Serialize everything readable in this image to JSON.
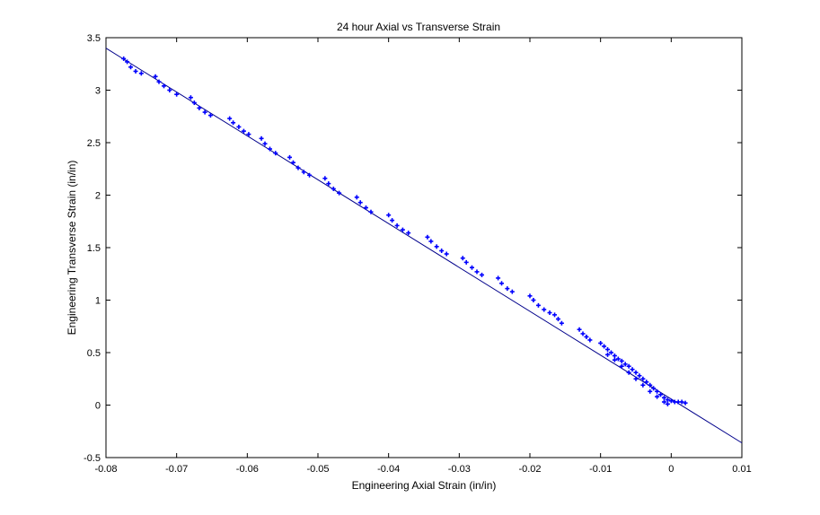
{
  "chart_data": {
    "type": "scatter",
    "title": "24 hour Axial vs Transverse Strain",
    "xlabel": "Engineering Axial Strain (in/in)",
    "ylabel": "Engineering Transverse Strain (in/in)",
    "xlim": [
      -0.08,
      0.01
    ],
    "ylim": [
      -0.5,
      3.5
    ],
    "xticks": [
      -0.08,
      -0.07,
      -0.06,
      -0.05,
      -0.04,
      -0.03,
      -0.02,
      -0.01,
      0,
      0.01
    ],
    "xtick_labels": [
      "-0.08",
      "-0.07",
      "-0.06",
      "-0.05",
      "-0.04",
      "-0.03",
      "-0.02",
      "-0.01",
      "0",
      "0.01"
    ],
    "yticks": [
      -0.5,
      0,
      0.5,
      1,
      1.5,
      2,
      2.5,
      3,
      3.5
    ],
    "ytick_labels": [
      "-0.5",
      "0",
      "0.5",
      "1",
      "1.5",
      "2",
      "2.5",
      "3",
      "3.5"
    ],
    "grid": false,
    "legend": "none",
    "colors": {
      "markers": "#0000ff",
      "fit_line": "#00008b",
      "axes": "#000000"
    },
    "series": [
      {
        "style": "markers",
        "points": [
          [
            -0.0775,
            3.3
          ],
          [
            -0.077,
            3.27
          ],
          [
            -0.0765,
            3.22
          ],
          [
            -0.0758,
            3.18
          ],
          [
            -0.075,
            3.16
          ],
          [
            -0.073,
            3.13
          ],
          [
            -0.0725,
            3.08
          ],
          [
            -0.0718,
            3.04
          ],
          [
            -0.071,
            3.0
          ],
          [
            -0.07,
            2.96
          ],
          [
            -0.068,
            2.93
          ],
          [
            -0.0675,
            2.88
          ],
          [
            -0.0668,
            2.83
          ],
          [
            -0.066,
            2.79
          ],
          [
            -0.0652,
            2.76
          ],
          [
            -0.0625,
            2.73
          ],
          [
            -0.062,
            2.69
          ],
          [
            -0.0612,
            2.65
          ],
          [
            -0.0605,
            2.61
          ],
          [
            -0.0598,
            2.58
          ],
          [
            -0.058,
            2.54
          ],
          [
            -0.0575,
            2.49
          ],
          [
            -0.0568,
            2.44
          ],
          [
            -0.056,
            2.4
          ],
          [
            -0.054,
            2.36
          ],
          [
            -0.0535,
            2.31
          ],
          [
            -0.0528,
            2.26
          ],
          [
            -0.052,
            2.22
          ],
          [
            -0.0512,
            2.19
          ],
          [
            -0.049,
            2.16
          ],
          [
            -0.0485,
            2.11
          ],
          [
            -0.0478,
            2.06
          ],
          [
            -0.047,
            2.02
          ],
          [
            -0.0445,
            1.98
          ],
          [
            -0.044,
            1.93
          ],
          [
            -0.0432,
            1.88
          ],
          [
            -0.0425,
            1.84
          ],
          [
            -0.04,
            1.81
          ],
          [
            -0.0395,
            1.76
          ],
          [
            -0.0388,
            1.71
          ],
          [
            -0.038,
            1.67
          ],
          [
            -0.0372,
            1.64
          ],
          [
            -0.0345,
            1.6
          ],
          [
            -0.034,
            1.56
          ],
          [
            -0.0332,
            1.51
          ],
          [
            -0.0325,
            1.47
          ],
          [
            -0.0318,
            1.44
          ],
          [
            -0.0295,
            1.4
          ],
          [
            -0.029,
            1.36
          ],
          [
            -0.0282,
            1.31
          ],
          [
            -0.0275,
            1.27
          ],
          [
            -0.0268,
            1.24
          ],
          [
            -0.0245,
            1.21
          ],
          [
            -0.024,
            1.16
          ],
          [
            -0.0232,
            1.11
          ],
          [
            -0.0225,
            1.08
          ],
          [
            -0.02,
            1.04
          ],
          [
            -0.0195,
            1.0
          ],
          [
            -0.0188,
            0.95
          ],
          [
            -0.018,
            0.91
          ],
          [
            -0.0172,
            0.88
          ],
          [
            -0.0165,
            0.86
          ],
          [
            -0.016,
            0.82
          ],
          [
            -0.0155,
            0.78
          ],
          [
            -0.013,
            0.72
          ],
          [
            -0.0125,
            0.68
          ],
          [
            -0.012,
            0.65
          ],
          [
            -0.0115,
            0.62
          ],
          [
            -0.01,
            0.59
          ],
          [
            -0.0095,
            0.56
          ],
          [
            -0.009,
            0.53
          ],
          [
            -0.0085,
            0.5
          ],
          [
            -0.008,
            0.47
          ],
          [
            -0.0075,
            0.44
          ],
          [
            -0.007,
            0.42
          ],
          [
            -0.0065,
            0.39
          ],
          [
            -0.006,
            0.37
          ],
          [
            -0.0055,
            0.34
          ],
          [
            -0.005,
            0.31
          ],
          [
            -0.0045,
            0.28
          ],
          [
            -0.004,
            0.25
          ],
          [
            -0.0035,
            0.22
          ],
          [
            -0.003,
            0.19
          ],
          [
            -0.0025,
            0.16
          ],
          [
            -0.002,
            0.13
          ],
          [
            -0.0015,
            0.1
          ],
          [
            -0.001,
            0.07
          ],
          [
            -0.0005,
            0.05
          ],
          [
            0.0,
            0.04
          ],
          [
            0.0005,
            0.03
          ],
          [
            0.001,
            0.03
          ],
          [
            0.0015,
            0.03
          ],
          [
            0.002,
            0.02
          ],
          [
            -0.009,
            0.48
          ],
          [
            -0.008,
            0.43
          ],
          [
            -0.007,
            0.37
          ],
          [
            -0.006,
            0.31
          ],
          [
            -0.005,
            0.25
          ],
          [
            -0.004,
            0.19
          ],
          [
            -0.003,
            0.13
          ],
          [
            -0.002,
            0.08
          ],
          [
            -0.001,
            0.03
          ],
          [
            -0.0005,
            0.01
          ]
        ]
      },
      {
        "style": "line",
        "points": [
          [
            -0.08,
            3.4
          ],
          [
            0.01,
            -0.36
          ]
        ]
      }
    ]
  }
}
